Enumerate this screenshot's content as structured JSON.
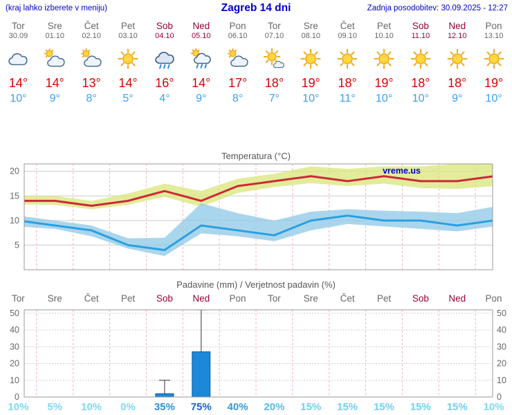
{
  "header": {
    "left_note": "(kraj lahko izberete v meniju)",
    "title": "Zagreb 14 dni",
    "updated": "Zadnja posodobitev: 30.09.2025 - 12:27"
  },
  "colors": {
    "header_blue": "#0000cc",
    "weekday_text": "#666666",
    "weekend_text": "#990033",
    "tmax_text": "#dd0000",
    "tmin_text": "#3aa0f0",
    "grid": "#cccccc",
    "border": "#999999",
    "day_separator": "#f2b0b0",
    "bar_fill": "#1e88d8",
    "bar_stroke": "#0d5fa8",
    "whisker": "#555555"
  },
  "days": [
    {
      "name": "Tor",
      "date": "30.09",
      "weekend": false,
      "icon": "cloud",
      "tmax_label": "14°",
      "tmin_label": "10°",
      "prob_label": "10%",
      "prob_color": "#7fd8f0"
    },
    {
      "name": "Sre",
      "date": "01.10",
      "weekend": false,
      "icon": "cloud-sun",
      "tmax_label": "14°",
      "tmin_label": "9°",
      "prob_label": "5%",
      "prob_color": "#7fd8f0"
    },
    {
      "name": "Čet",
      "date": "02.10",
      "weekend": false,
      "icon": "cloud-sun",
      "tmax_label": "13°",
      "tmin_label": "8°",
      "prob_label": "10%",
      "prob_color": "#7fd8f0"
    },
    {
      "name": "Pet",
      "date": "03.10",
      "weekend": false,
      "icon": "sun",
      "tmax_label": "14°",
      "tmin_label": "5°",
      "prob_label": "0%",
      "prob_color": "#7fd8f0"
    },
    {
      "name": "Sob",
      "date": "04.10",
      "weekend": true,
      "icon": "rain",
      "tmax_label": "16°",
      "tmin_label": "4°",
      "prob_label": "35%",
      "prob_color": "#2e8fd0"
    },
    {
      "name": "Ned",
      "date": "05.10",
      "weekend": true,
      "icon": "rain-sun",
      "tmax_label": "14°",
      "tmin_label": "9°",
      "prob_label": "75%",
      "prob_color": "#1565c0"
    },
    {
      "name": "Pon",
      "date": "06.10",
      "weekend": false,
      "icon": "cloud-sun",
      "tmax_label": "17°",
      "tmin_label": "8°",
      "prob_label": "40%",
      "prob_color": "#2f9ad8"
    },
    {
      "name": "Tor",
      "date": "07.10",
      "weekend": false,
      "icon": "sun-cloud",
      "tmax_label": "18°",
      "tmin_label": "7°",
      "prob_label": "20%",
      "prob_color": "#55bce8"
    },
    {
      "name": "Sre",
      "date": "08.10",
      "weekend": false,
      "icon": "sun",
      "tmax_label": "19°",
      "tmin_label": "10°",
      "prob_label": "15%",
      "prob_color": "#6fd0ee"
    },
    {
      "name": "Čet",
      "date": "09.10",
      "weekend": false,
      "icon": "sun",
      "tmax_label": "18°",
      "tmin_label": "11°",
      "prob_label": "15%",
      "prob_color": "#6fd0ee"
    },
    {
      "name": "Pet",
      "date": "10.10",
      "weekend": false,
      "icon": "sun",
      "tmax_label": "19°",
      "tmin_label": "10°",
      "prob_label": "15%",
      "prob_color": "#6fd0ee"
    },
    {
      "name": "Sob",
      "date": "11.10",
      "weekend": true,
      "icon": "sun",
      "tmax_label": "18°",
      "tmin_label": "10°",
      "prob_label": "15%",
      "prob_color": "#6fd0ee"
    },
    {
      "name": "Ned",
      "date": "12.10",
      "weekend": true,
      "icon": "sun",
      "tmax_label": "18°",
      "tmin_label": "9°",
      "prob_label": "15%",
      "prob_color": "#6fd0ee"
    },
    {
      "name": "Pon",
      "date": "13.10",
      "weekend": false,
      "icon": "sun",
      "tmax_label": "19°",
      "tmin_label": "10°",
      "prob_label": "10%",
      "prob_color": "#7fd8f0"
    }
  ],
  "chart_data": [
    {
      "type": "line",
      "title": "Temperatura (°C)",
      "watermark": "vreme.us",
      "x": [
        "Tor 30.09",
        "Sre 01.10",
        "Čet 02.10",
        "Pet 03.10",
        "Sob 04.10",
        "Ned 05.10",
        "Pon 06.10",
        "Tor 07.10",
        "Sre 08.10",
        "Čet 09.10",
        "Pet 10.10",
        "Sob 11.10",
        "Ned 12.10",
        "Pon 13.10"
      ],
      "series": [
        {
          "name": "max",
          "color": "#cc2936",
          "values": [
            14,
            14,
            13,
            14,
            16,
            14,
            17,
            18,
            19,
            18,
            19,
            18,
            18,
            19
          ]
        },
        {
          "name": "min",
          "color": "#2b9fe0",
          "values": [
            10,
            9,
            8,
            5,
            4,
            9,
            8,
            7,
            10,
            11,
            10,
            10,
            9,
            10
          ]
        }
      ],
      "bands": [
        {
          "name": "max-range",
          "color": "#dbe77d",
          "upper": [
            15,
            15,
            14,
            15.5,
            17.5,
            16,
            18.5,
            19.5,
            21,
            20.5,
            21,
            21,
            21.5,
            22.5
          ],
          "lower": [
            13.3,
            13.2,
            12.3,
            13.2,
            14.8,
            12.8,
            15.6,
            16.8,
            17.6,
            17,
            17.5,
            16.6,
            16.4,
            17
          ]
        },
        {
          "name": "min-range",
          "color": "#92cbe8",
          "upper": [
            11,
            10,
            9,
            6.4,
            6.5,
            13.5,
            11.5,
            10,
            11.8,
            12.3,
            12,
            11.8,
            11.5,
            12.8
          ],
          "lower": [
            8.8,
            8.3,
            6.8,
            4.3,
            2.8,
            7.4,
            6.8,
            5.8,
            8,
            9.3,
            8.8,
            8.3,
            7.8,
            8.8
          ]
        }
      ],
      "ylim": [
        0,
        21.5
      ],
      "yticks": [
        5,
        10,
        15,
        20
      ],
      "grid": true,
      "legend": "none"
    },
    {
      "type": "bar",
      "title": "Padavine (mm) / Verjetnost padavin (%)",
      "categories": [
        "Tor",
        "Sre",
        "Čet",
        "Pet",
        "Sob",
        "Ned",
        "Pon",
        "Tor",
        "Sre",
        "Čet",
        "Pet",
        "Sob",
        "Ned",
        "Pon"
      ],
      "values": [
        0,
        0,
        0,
        0,
        2,
        27,
        0,
        0,
        0,
        0,
        0,
        0,
        0,
        0
      ],
      "whisker_max": [
        0,
        0,
        0,
        0,
        10,
        52,
        0,
        0,
        0,
        0,
        0,
        0,
        0,
        0
      ],
      "probabilities_pct": [
        10,
        5,
        10,
        0,
        35,
        75,
        40,
        20,
        15,
        15,
        15,
        15,
        15,
        10
      ],
      "ylim": [
        0,
        52
      ],
      "yticks": [
        0,
        10,
        20,
        30,
        40,
        50
      ],
      "grid": true,
      "legend": "none"
    }
  ]
}
